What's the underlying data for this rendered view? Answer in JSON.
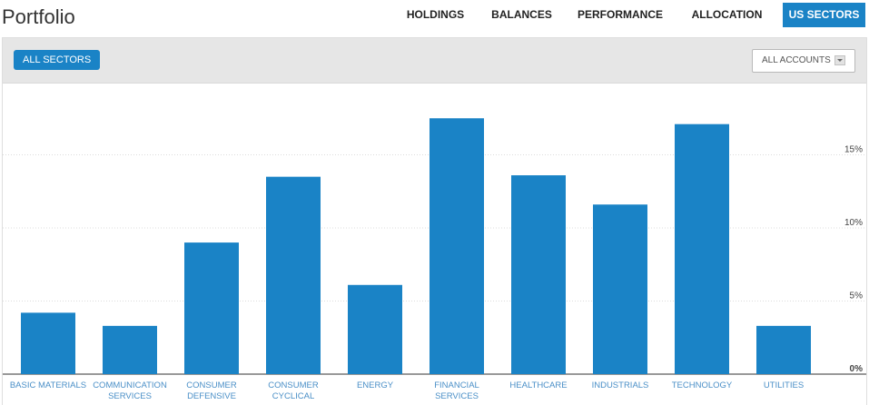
{
  "page": {
    "title": "Portfolio"
  },
  "nav": {
    "tabs": [
      {
        "label": "HOLDINGS",
        "active": false
      },
      {
        "label": "BALANCES",
        "active": false
      },
      {
        "label": "PERFORMANCE",
        "active": false
      },
      {
        "label": "ALLOCATION",
        "active": false
      },
      {
        "label": "US SECTORS",
        "active": true
      }
    ]
  },
  "toolbar": {
    "sectors_button": "ALL SECTORS",
    "accounts_select": "ALL ACCOUNTS"
  },
  "icons": {
    "dropdown": "chevron-down-icon"
  },
  "colors": {
    "accent": "#1a83c6",
    "bar": "#1a83c6",
    "label": "#4a8fc7"
  },
  "chart_data": {
    "type": "bar",
    "categories": [
      [
        "BASIC MATERIALS"
      ],
      [
        "COMMUNICATION",
        "SERVICES"
      ],
      [
        "CONSUMER",
        "DEFENSIVE"
      ],
      [
        "CONSUMER",
        "CYCLICAL"
      ],
      [
        "ENERGY"
      ],
      [
        "FINANCIAL",
        "SERVICES"
      ],
      [
        "HEALTHCARE"
      ],
      [
        "INDUSTRIALS"
      ],
      [
        "TECHNOLOGY"
      ],
      [
        "UTILITIES"
      ]
    ],
    "values": [
      4.2,
      3.3,
      9.0,
      13.5,
      6.1,
      17.5,
      13.6,
      11.6,
      17.1,
      3.3
    ],
    "unit": "%",
    "yticks": [
      "0%",
      "5%",
      "10%",
      "15%"
    ],
    "ytick_values": [
      0,
      5,
      10,
      15
    ],
    "ylim": [
      0,
      19
    ],
    "grid": true,
    "legend": "none",
    "title": "",
    "xlabel": "",
    "ylabel": ""
  }
}
